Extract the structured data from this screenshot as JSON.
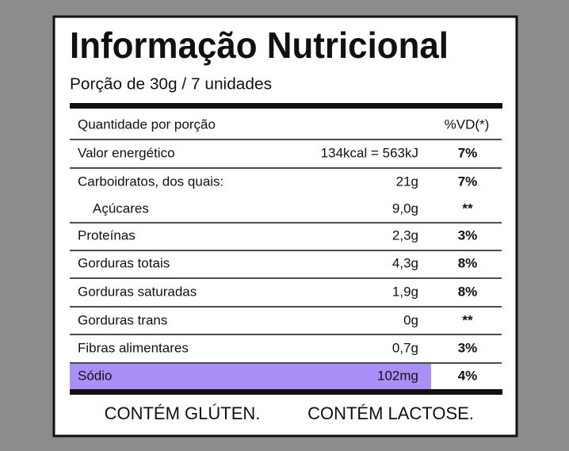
{
  "title": "Informação Nutricional",
  "serving": "Porção de 30g / 7 unidades",
  "table": {
    "header": [
      "Quantidade por porção",
      "%VD(*)"
    ],
    "rows": [
      [
        "Valor energético",
        "134kcal = 563kJ",
        "7%"
      ],
      [
        "Carboidratos, dos quais:",
        "21g",
        "7%"
      ],
      [
        "Açúcares",
        "9,0g",
        "**"
      ],
      [
        "Proteínas",
        "2,3g",
        "3%"
      ],
      [
        "Gorduras totais",
        "4,3g",
        "8%"
      ],
      [
        "Gorduras saturadas",
        "1,9g",
        "8%"
      ],
      [
        "Gorduras trans",
        "0g",
        "**"
      ],
      [
        "Fibras alimentares",
        "0,7g",
        "3%"
      ],
      [
        "Sódio",
        "102mg",
        "4%"
      ]
    ]
  },
  "footer": [
    "CONTÉM GLÚTEN.",
    "CONTÉM LACTOSE."
  ]
}
